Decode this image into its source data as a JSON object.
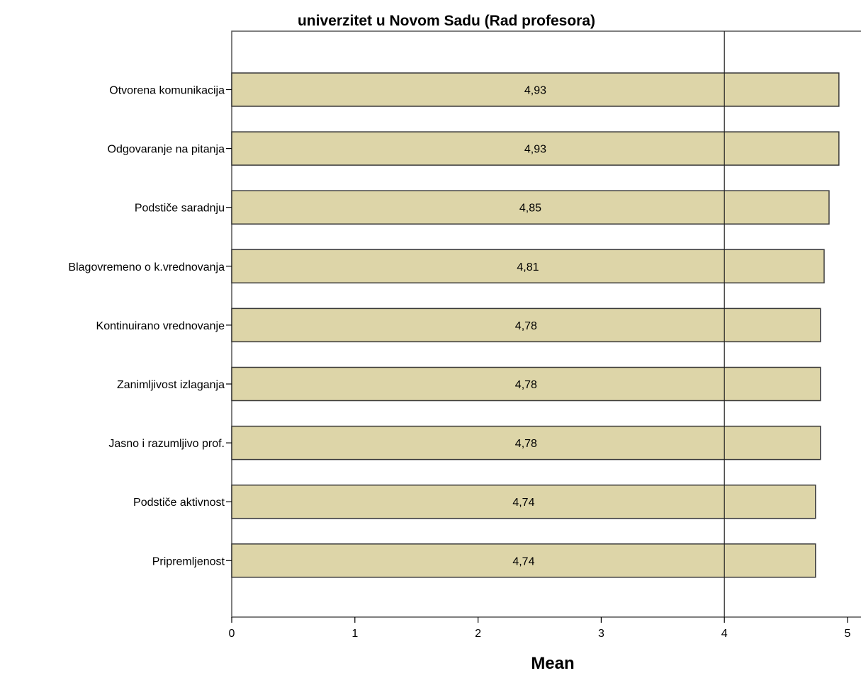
{
  "chart_data": {
    "type": "bar",
    "orientation": "horizontal",
    "title": "univerzitet u Novom Sadu (Rad profesora)",
    "xlabel": "Mean",
    "ylabel": "",
    "xlim": [
      0,
      5
    ],
    "xticks": [
      "0",
      "1",
      "2",
      "3",
      "4",
      "5"
    ],
    "reference_line": 4,
    "bar_color": "#ddd5a8",
    "categories": [
      "Otvorena komunikacija",
      "Odgovaranje na pitanja",
      "Podstiče saradnju",
      "Blagovremeno o k.vrednovanja",
      "Kontinuirano vrednovanje",
      "Zanimljivost izlaganja",
      "Jasno i razumljivo prof.",
      "Podstiče aktivnost",
      "Pripremljenost"
    ],
    "values": [
      4.93,
      4.93,
      4.85,
      4.81,
      4.78,
      4.78,
      4.78,
      4.74,
      4.74
    ],
    "value_labels": [
      "4,93",
      "4,93",
      "4,85",
      "4,81",
      "4,78",
      "4,78",
      "4,78",
      "4,74",
      "4,74"
    ]
  }
}
